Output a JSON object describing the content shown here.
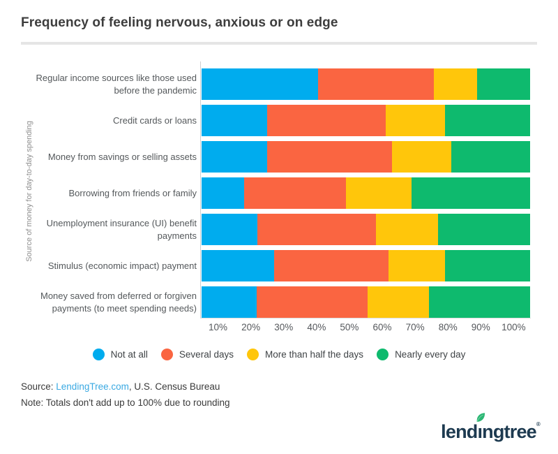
{
  "title": "Frequency of feeling nervous, anxious or on edge",
  "chart_data": {
    "type": "bar",
    "stacked": true,
    "orientation": "horizontal",
    "title": "Frequency of feeling nervous, anxious or on edge",
    "ylabel": "Source of money for day-to-day spending",
    "xlabel": "",
    "xlim": [
      0,
      100
    ],
    "grid": false,
    "legend_position": "bottom",
    "x_ticks": [
      "10%",
      "20%",
      "30%",
      "40%",
      "50%",
      "60%",
      "70%",
      "80%",
      "90%",
      "100%"
    ],
    "categories": [
      "Regular income sources like those used before the pandemic",
      "Credit cards or loans",
      "Money from savings or selling assets",
      "Borrowing from friends or family",
      "Unemployment insurance (UI) benefit payments",
      "Stimulus (economic impact) payment",
      "Money saved from deferred or forgiven payments (to meet spending needs)"
    ],
    "category_lines": [
      [
        "Regular income sources like those used",
        "before the pandemic"
      ],
      [
        "Credit cards or loans"
      ],
      [
        "Money from savings or selling assets"
      ],
      [
        "Borrowing from friends or family"
      ],
      [
        "Unemployment insurance (UI) benefit",
        "payments"
      ],
      [
        "Stimulus (economic impact) payment"
      ],
      [
        "Money saved from deferred or forgiven",
        "payments (to meet spending needs)"
      ]
    ],
    "series": [
      {
        "name": "Not at all",
        "color": "#00acee",
        "values": [
          35,
          20,
          20,
          13,
          17,
          22,
          17
        ]
      },
      {
        "name": "Several days",
        "color": "#fa6541",
        "values": [
          35,
          36,
          38,
          31,
          36,
          35,
          34
        ]
      },
      {
        "name": "More than half the days",
        "color": "#ffc60b",
        "values": [
          13,
          18,
          18,
          20,
          19,
          17,
          19
        ]
      },
      {
        "name": "Nearly every day",
        "color": "#0eba6e",
        "values": [
          16,
          26,
          24,
          36,
          28,
          26,
          31
        ]
      }
    ]
  },
  "footer": {
    "source_prefix": "Source: ",
    "source_link": "LendingTree.com",
    "source_suffix": ", U.S. Census Bureau",
    "note": "Note: Totals don't add up to 100% due to rounding"
  },
  "logo": {
    "text_pre": "lend",
    "text_i": "ı",
    "text_post": "ngtree",
    "registered": "®",
    "navy": "#1d3a50",
    "leaf_green": "#2bb673"
  }
}
